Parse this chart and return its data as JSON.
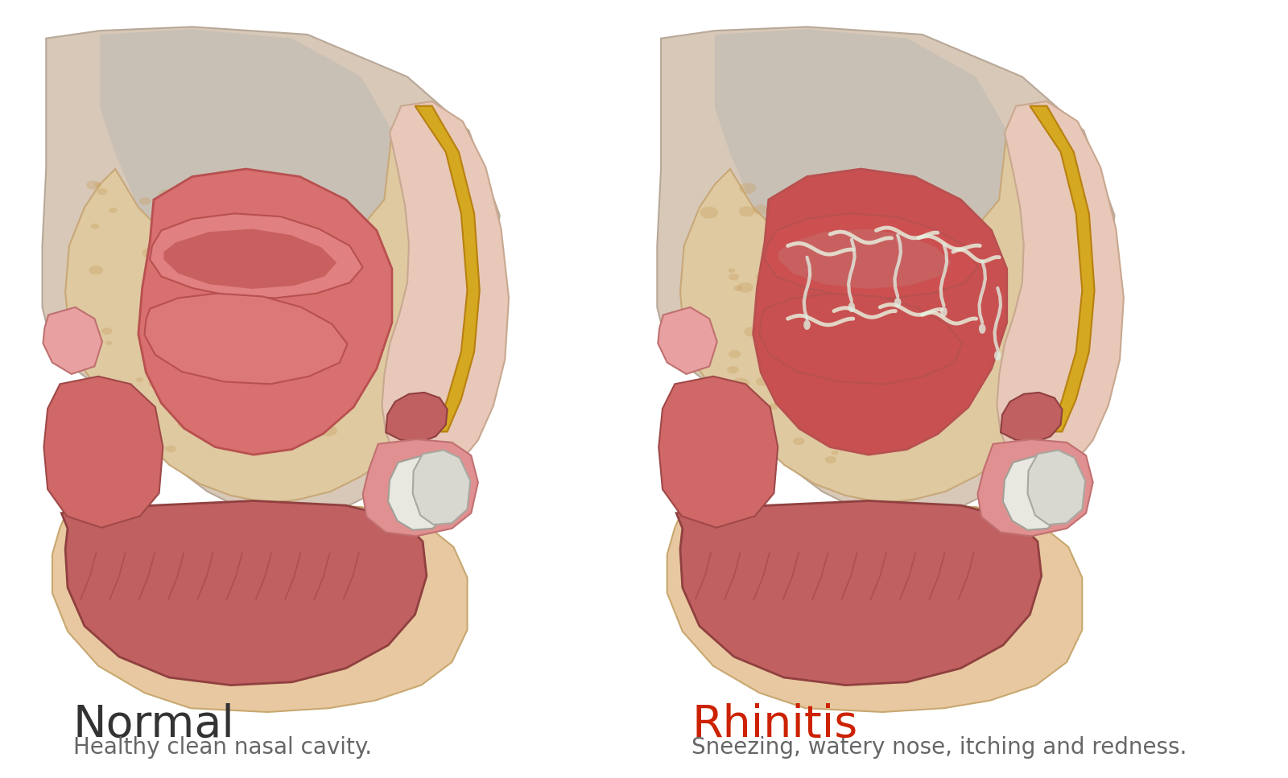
{
  "title_normal": "Normal",
  "subtitle_normal": "Healthy clean nasal cavity.",
  "title_rhinitis": "Rhinitis",
  "subtitle_rhinitis": "Sneezing, watery nose, itching and redness.",
  "title_normal_color": "#333333",
  "title_rhinitis_color": "#cc2200",
  "subtitle_color": "#666666",
  "background_color": "#ffffff",
  "color_brain": "#c8c0b5",
  "color_bone": "#dfc9a0",
  "color_bone_edge": "#c8a878",
  "color_cavity": "#d87070",
  "color_cavity_edge": "#b85050",
  "color_turbinate1": "#e08080",
  "color_turbinate2": "#dc7878",
  "color_turbinate_dark": "#c86060",
  "color_gold": "#d4a820",
  "color_gold_edge": "#b88010",
  "color_nose_skin": "#e8c8b8",
  "color_nose_edge": "#c8a890",
  "color_nostril": "#c06060",
  "color_jaw": "#e8c8a0",
  "color_jaw_edge": "#c8a870",
  "color_tooth1": "#e8e8e0",
  "color_tooth2": "#d8d8d0",
  "color_gum": "#e09090",
  "color_gum_edge": "#c07070",
  "color_pharynx": "#d06868",
  "color_eust": "#e8a0a0",
  "color_mucus": "#e8f0e0",
  "color_skull_fill": "#d8c8b8",
  "color_skull_edge": "#b8a898",
  "color_inflam": "#c85050",
  "color_mouth_int": "#c06060",
  "color_mouth_edge": "#904040",
  "color_palate": "#b05050"
}
